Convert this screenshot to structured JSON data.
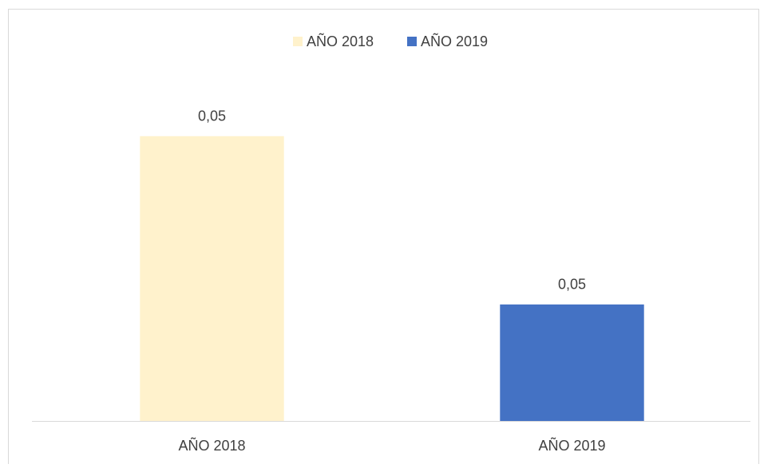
{
  "chart_data": {
    "type": "bar",
    "categories": [
      "AÑO 2018",
      "AÑO 2019"
    ],
    "values": [
      0.0532,
      0.0454
    ],
    "value_labels": [
      "0,05",
      "0,05"
    ],
    "colors": [
      "#fff2cc",
      "#4472c4"
    ],
    "ylim": [
      0.04,
      0.056
    ],
    "legend": "top"
  }
}
